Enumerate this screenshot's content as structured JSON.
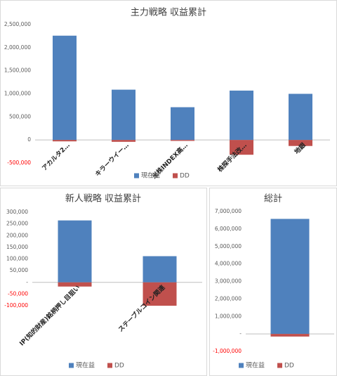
{
  "chart_data": [
    {
      "type": "bar",
      "stacked": true,
      "title": "主力戦略 収益累計",
      "categories": [
        "アカルタ2…",
        "キラーウイー…",
        "米株INDEX高…",
        "株探手法改…",
        "地銀"
      ],
      "series": [
        {
          "name": "現在益",
          "color": "#4f81bd",
          "values": [
            2260000,
            1090000,
            710000,
            1070000,
            1000000
          ]
        },
        {
          "name": "DD",
          "color": "#c0504d",
          "values": [
            -30000,
            -40000,
            -20000,
            -320000,
            -130000
          ]
        }
      ],
      "ylim": [
        -500000,
        2500000
      ],
      "yticks": [
        {
          "value": -500000,
          "label": "-500,000"
        },
        0,
        {
          "value": 500000,
          "label": "500,000"
        },
        {
          "value": 1000000,
          "label": "1,000,000"
        },
        {
          "value": 1500000,
          "label": "1,500,000"
        },
        {
          "value": 2000000,
          "label": "2,000,000"
        },
        {
          "value": 2500000,
          "label": "2,500,000"
        }
      ],
      "negative_tick_color": "#ff0000",
      "legend": "bottom"
    },
    {
      "type": "bar",
      "stacked": true,
      "title": "新人戦略 収益累計",
      "categories": [
        "IP(知的財産)銘柄押し目狙い",
        "ステーブルコイン関連"
      ],
      "series": [
        {
          "name": "現在益",
          "color": "#4f81bd",
          "values": [
            265000,
            112000
          ]
        },
        {
          "name": "DD",
          "color": "#c0504d",
          "values": [
            -18000,
            -100000
          ]
        }
      ],
      "ylim": [
        -100000,
        300000
      ],
      "yticks": [
        {
          "value": -100000,
          "label": "-100,000"
        },
        {
          "value": -50000,
          "label": "-50,000"
        },
        {
          "value": 0,
          "label": "-"
        },
        {
          "value": 50000,
          "label": "50,000"
        },
        {
          "value": 100000,
          "label": "100,000"
        },
        {
          "value": 150000,
          "label": "150,000"
        },
        {
          "value": 200000,
          "label": "200,000"
        },
        {
          "value": 250000,
          "label": "250,000"
        },
        {
          "value": 300000,
          "label": "300,000"
        }
      ],
      "negative_tick_color": "#ff0000",
      "legend": "bottom"
    },
    {
      "type": "bar",
      "stacked": true,
      "title": "総計",
      "categories": [
        null
      ],
      "series": [
        {
          "name": "現在益",
          "color": "#4f81bd",
          "values": [
            6580000
          ]
        },
        {
          "name": "DD",
          "color": "#c0504d",
          "values": [
            -150000
          ]
        }
      ],
      "ylim": [
        -1000000,
        7000000
      ],
      "yticks": [
        {
          "value": -1000000,
          "label": "-1,000,000"
        },
        {
          "value": 0,
          "label": "-"
        },
        {
          "value": 1000000,
          "label": "1,000,000"
        },
        {
          "value": 2000000,
          "label": "2,000,000"
        },
        {
          "value": 3000000,
          "label": "3,000,000"
        },
        {
          "value": 4000000,
          "label": "4,000,000"
        },
        {
          "value": 5000000,
          "label": "5,000,000"
        },
        {
          "value": 6000000,
          "label": "6,000,000"
        },
        {
          "value": 7000000,
          "label": "7,000,000"
        }
      ],
      "negative_tick_color": "#ff0000",
      "legend": "bottom"
    }
  ]
}
